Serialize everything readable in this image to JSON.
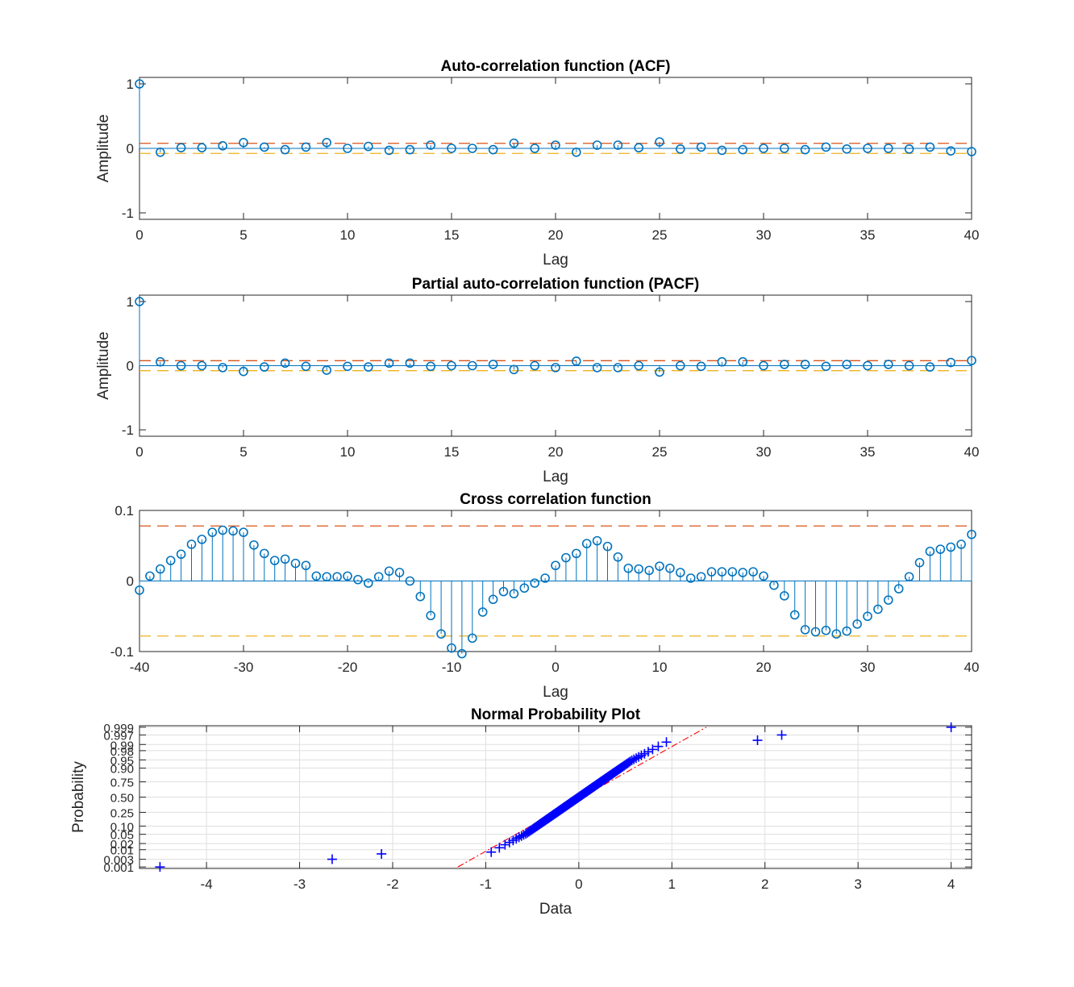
{
  "colors": {
    "stem": "#0072BD",
    "upper_bound": "#D95319",
    "lower_bound": "#EDB120",
    "probplot_marker": "#0000FF",
    "probplot_ref": "#FF0000",
    "axes": "#262626",
    "grid": "#dfdfdf"
  },
  "chart_data": [
    {
      "type": "stem",
      "title": "Auto-correlation function (ACF)",
      "xlabel": "Lag",
      "ylabel": "Amplitude",
      "xlim": [
        0,
        40
      ],
      "ylim": [
        -1.1,
        1.1
      ],
      "xticks": [
        "0",
        "5",
        "10",
        "15",
        "20",
        "25",
        "30",
        "35",
        "40"
      ],
      "xtick_values": [
        0,
        5,
        10,
        15,
        20,
        25,
        30,
        35,
        40
      ],
      "yticks": [
        "-1",
        "0",
        "1"
      ],
      "ytick_values": [
        -1,
        0,
        1
      ],
      "x": [
        0,
        1,
        2,
        3,
        4,
        5,
        6,
        7,
        8,
        9,
        10,
        11,
        12,
        13,
        14,
        15,
        16,
        17,
        18,
        19,
        20,
        21,
        22,
        23,
        24,
        25,
        26,
        27,
        28,
        29,
        30,
        31,
        32,
        33,
        34,
        35,
        36,
        37,
        38,
        39,
        40
      ],
      "values": [
        1.0,
        -0.06,
        0.01,
        0.01,
        0.04,
        0.09,
        0.02,
        -0.02,
        0.02,
        0.09,
        0.0,
        0.03,
        -0.03,
        -0.02,
        0.05,
        0.0,
        0.0,
        -0.02,
        0.08,
        0.0,
        0.05,
        -0.06,
        0.05,
        0.05,
        0.01,
        0.1,
        -0.01,
        0.02,
        -0.03,
        -0.02,
        0.0,
        0.0,
        -0.02,
        0.02,
        -0.01,
        0.0,
        0.0,
        -0.01,
        0.02,
        -0.04,
        -0.05
      ],
      "bounds": [
        0.078,
        -0.078
      ]
    },
    {
      "type": "stem",
      "title": "Partial auto-correlation function (PACF)",
      "xlabel": "Lag",
      "ylabel": "Amplitude",
      "xlim": [
        0,
        40
      ],
      "ylim": [
        -1.1,
        1.1
      ],
      "xticks": [
        "0",
        "5",
        "10",
        "15",
        "20",
        "25",
        "30",
        "35",
        "40"
      ],
      "xtick_values": [
        0,
        5,
        10,
        15,
        20,
        25,
        30,
        35,
        40
      ],
      "yticks": [
        "-1",
        "0",
        "1"
      ],
      "ytick_values": [
        -1,
        0,
        1
      ],
      "x": [
        0,
        1,
        2,
        3,
        4,
        5,
        6,
        7,
        8,
        9,
        10,
        11,
        12,
        13,
        14,
        15,
        16,
        17,
        18,
        19,
        20,
        21,
        22,
        23,
        24,
        25,
        26,
        27,
        28,
        29,
        30,
        31,
        32,
        33,
        34,
        35,
        36,
        37,
        38,
        39,
        40
      ],
      "values": [
        1.0,
        0.06,
        0.0,
        0.0,
        -0.03,
        -0.09,
        -0.02,
        0.04,
        -0.01,
        -0.07,
        -0.01,
        -0.02,
        0.04,
        0.04,
        -0.01,
        0.0,
        0.0,
        0.02,
        -0.06,
        0.0,
        -0.03,
        0.07,
        -0.03,
        -0.03,
        0.0,
        -0.1,
        0.0,
        -0.01,
        0.06,
        0.06,
        0.0,
        0.02,
        0.02,
        -0.01,
        0.02,
        0.0,
        0.02,
        0.0,
        -0.02,
        0.05,
        0.08
      ],
      "bounds": [
        0.078,
        -0.078
      ]
    },
    {
      "type": "stem",
      "title": "Cross correlation function",
      "xlabel": "Lag",
      "ylabel": "",
      "xlim": [
        -40,
        40
      ],
      "ylim": [
        -0.1,
        0.1
      ],
      "xticks": [
        "-40",
        "-30",
        "-20",
        "-10",
        "0",
        "10",
        "20",
        "30",
        "40"
      ],
      "xtick_values": [
        -40,
        -30,
        -20,
        -10,
        0,
        10,
        20,
        30,
        40
      ],
      "yticks": [
        "-0.1",
        "0",
        "0.1"
      ],
      "ytick_values": [
        -0.1,
        0,
        0.1
      ],
      "x": [
        -40,
        -39,
        -38,
        -37,
        -36,
        -35,
        -34,
        -33,
        -32,
        -31,
        -30,
        -29,
        -28,
        -27,
        -26,
        -25,
        -24,
        -23,
        -22,
        -21,
        -20,
        -19,
        -18,
        -17,
        -16,
        -15,
        -14,
        -13,
        -12,
        -11,
        -10,
        -9,
        -8,
        -7,
        -6,
        -5,
        -4,
        -3,
        -2,
        -1,
        0,
        1,
        2,
        3,
        4,
        5,
        6,
        7,
        8,
        9,
        10,
        11,
        12,
        13,
        14,
        15,
        16,
        17,
        18,
        19,
        20,
        21,
        22,
        23,
        24,
        25,
        26,
        27,
        28,
        29,
        30,
        31,
        32,
        33,
        34,
        35,
        36,
        37,
        38,
        39,
        40
      ],
      "values": [
        -0.013,
        0.007,
        0.017,
        0.029,
        0.038,
        0.052,
        0.059,
        0.069,
        0.072,
        0.071,
        0.069,
        0.051,
        0.039,
        0.029,
        0.031,
        0.025,
        0.022,
        0.007,
        0.006,
        0.006,
        0.007,
        0.002,
        -0.003,
        0.006,
        0.014,
        0.012,
        0.0,
        -0.022,
        -0.049,
        -0.075,
        -0.095,
        -0.103,
        -0.081,
        -0.044,
        -0.026,
        -0.015,
        -0.018,
        -0.01,
        -0.003,
        0.004,
        0.022,
        0.033,
        0.039,
        0.053,
        0.057,
        0.049,
        0.034,
        0.018,
        0.017,
        0.015,
        0.021,
        0.018,
        0.012,
        0.004,
        0.006,
        0.013,
        0.013,
        0.013,
        0.012,
        0.013,
        0.007,
        -0.006,
        -0.021,
        -0.048,
        -0.069,
        -0.072,
        -0.07,
        -0.075,
        -0.071,
        -0.061,
        -0.05,
        -0.04,
        -0.027,
        -0.011,
        0.006,
        0.026,
        0.042,
        0.045,
        0.048,
        0.052,
        0.066
      ],
      "bounds": [
        0.078,
        -0.078
      ]
    },
    {
      "type": "scatter",
      "title": "Normal Probability Plot",
      "xlabel": "Data",
      "ylabel": "Probability",
      "xlim": [
        -4.72,
        4.22
      ],
      "xticks": [
        "-4",
        "-3",
        "-2",
        "-1",
        "0",
        "1",
        "2",
        "3",
        "4"
      ],
      "xtick_values": [
        -4,
        -3,
        -2,
        -1,
        0,
        1,
        2,
        3,
        4
      ],
      "yticks": [
        "0.001",
        "0.003",
        "0.01",
        "0.02",
        "0.05",
        "0.10",
        "0.25",
        "0.50",
        "0.75",
        "0.90",
        "0.95",
        "0.98",
        "0.99",
        "0.997",
        "0.999"
      ],
      "ytick_values": [
        0.001,
        0.003,
        0.01,
        0.02,
        0.05,
        0.1,
        0.25,
        0.5,
        0.75,
        0.9,
        0.95,
        0.98,
        0.99,
        0.997,
        0.999
      ],
      "y_scale": "normal-probability",
      "grid": true,
      "sample_extremes": {
        "min": -4.5,
        "max": 4.0
      },
      "sample_points": [
        [
          -4.5,
          0.001
        ],
        [
          -2.65,
          0.003
        ],
        [
          -2.12,
          0.006
        ],
        [
          1.92,
          0.994
        ],
        [
          2.18,
          0.997
        ],
        [
          4.0,
          0.999
        ]
      ],
      "reference_line": {
        "x": [
          -1.3,
          1.37
        ],
        "p": [
          0.001,
          0.999
        ]
      }
    }
  ]
}
